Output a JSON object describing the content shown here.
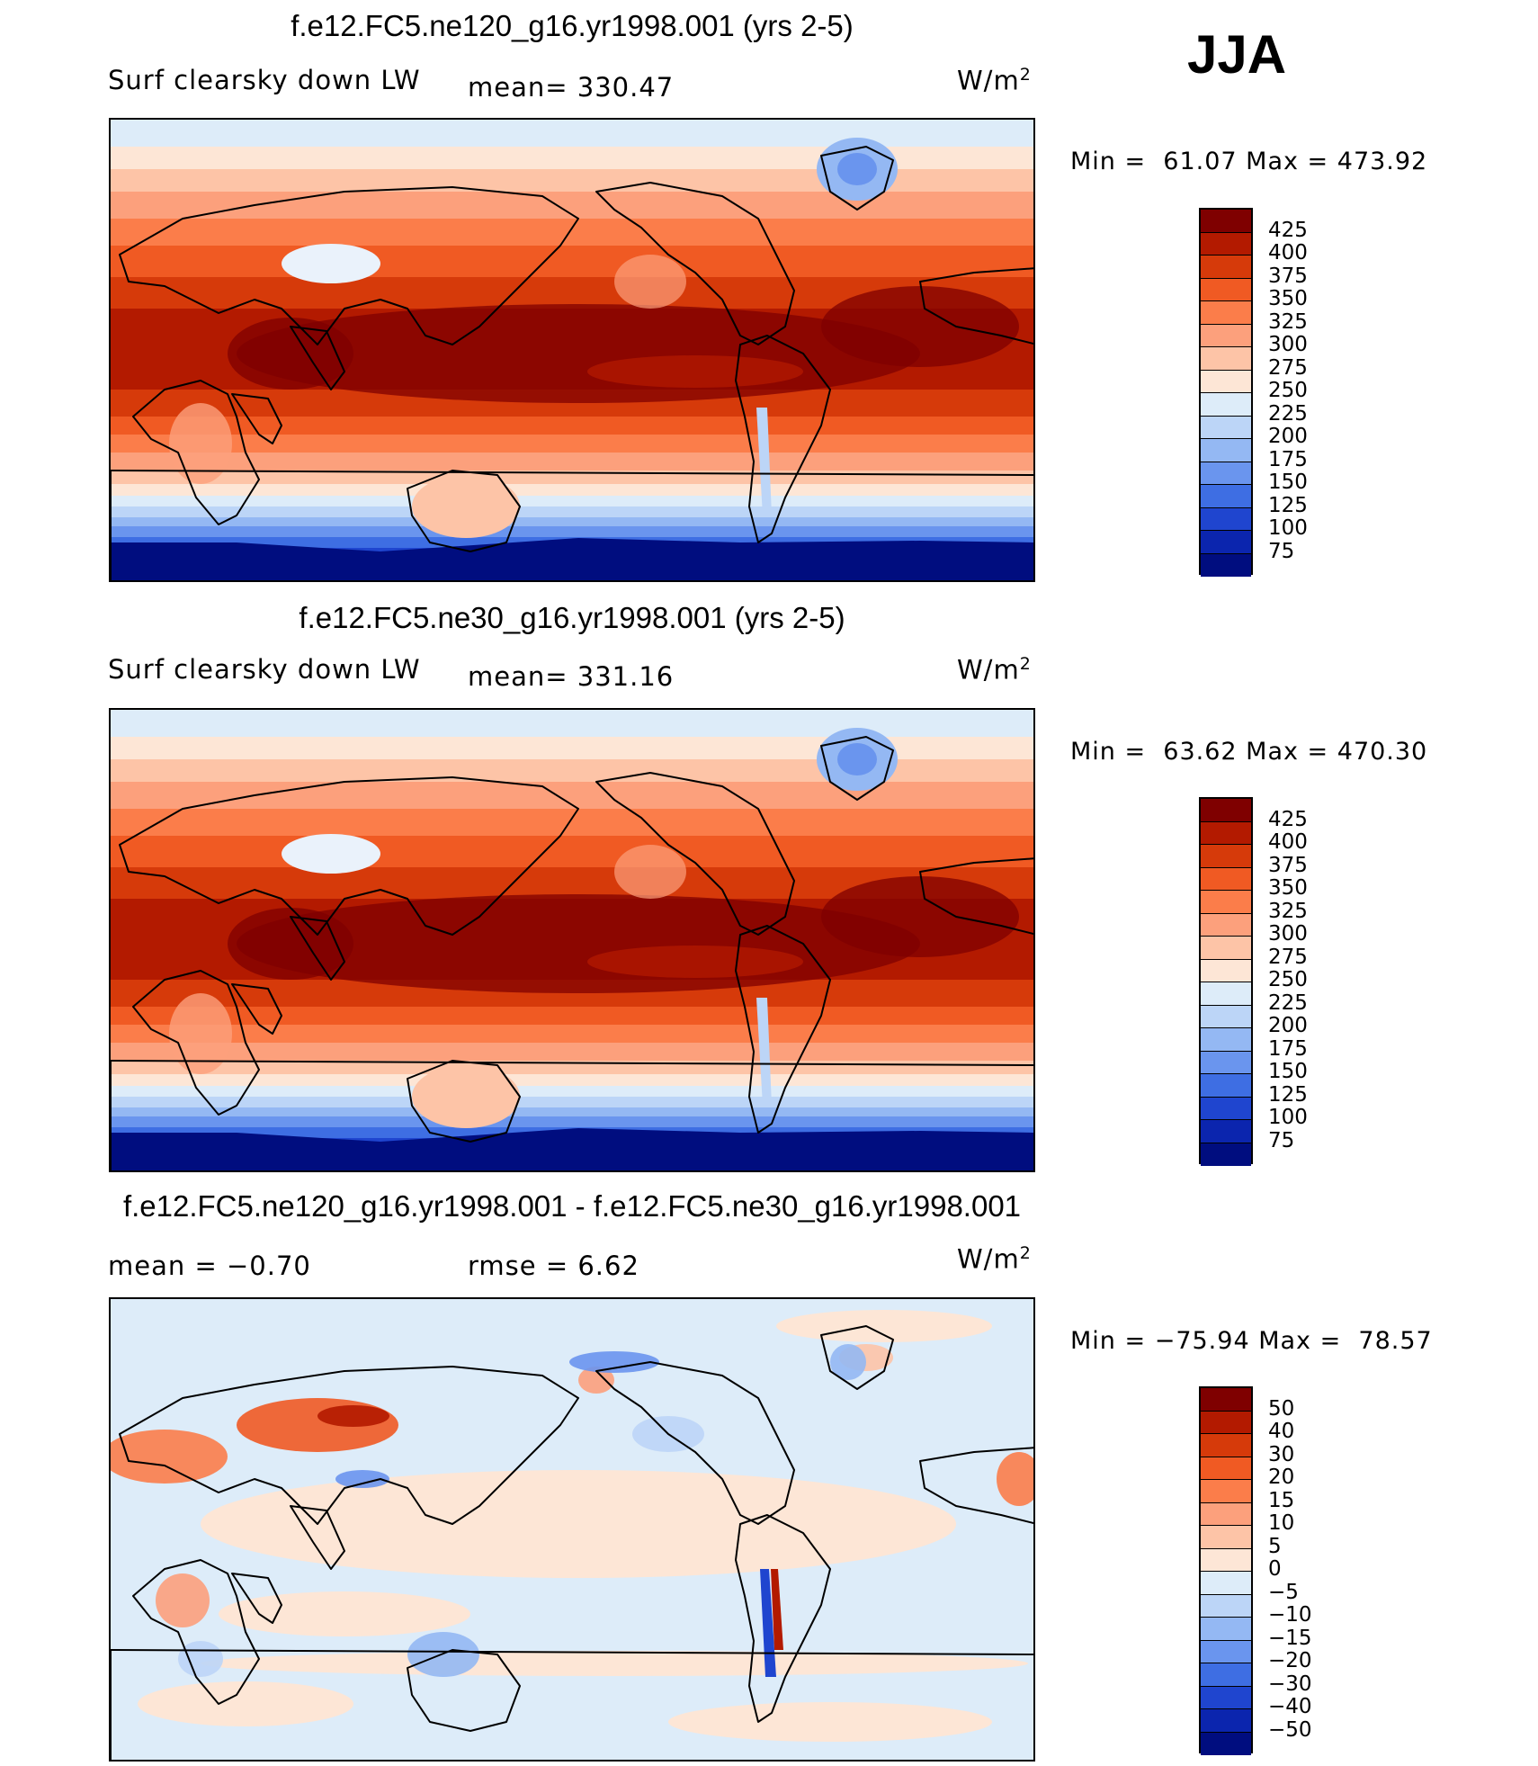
{
  "season": "JJA",
  "panels": [
    {
      "title": "f.e12.FC5.ne120_g16.yr1998.001 (yrs 2-5)",
      "left_label": "Surf clearsky down LW",
      "mid_label": "mean= 330.47",
      "units_base": "W/m",
      "units_sup": "2",
      "minmax": "Min =  61.07 Max = 473.92",
      "colorbar": {
        "levels": [
          "425",
          "400",
          "375",
          "350",
          "325",
          "300",
          "275",
          "250",
          "225",
          "200",
          "175",
          "150",
          "125",
          "100",
          "75"
        ],
        "colors": [
          "#7f0000",
          "#b31a00",
          "#d63a0a",
          "#f05a23",
          "#fb7d4a",
          "#fca07c",
          "#fdc4a7",
          "#fde6d6",
          "#ddecf9",
          "#bcd5f7",
          "#94b8f3",
          "#6a95ee",
          "#3e6ee3",
          "#1f45cf",
          "#0b25ae",
          "#000d7f"
        ]
      }
    },
    {
      "title": "f.e12.FC5.ne30_g16.yr1998.001 (yrs 2-5)",
      "left_label": "Surf clearsky down LW",
      "mid_label": "mean= 331.16",
      "units_base": "W/m",
      "units_sup": "2",
      "minmax": "Min =  63.62 Max = 470.30",
      "colorbar": {
        "levels": [
          "425",
          "400",
          "375",
          "350",
          "325",
          "300",
          "275",
          "250",
          "225",
          "200",
          "175",
          "150",
          "125",
          "100",
          "75"
        ],
        "colors": [
          "#7f0000",
          "#b31a00",
          "#d63a0a",
          "#f05a23",
          "#fb7d4a",
          "#fca07c",
          "#fdc4a7",
          "#fde6d6",
          "#ddecf9",
          "#bcd5f7",
          "#94b8f3",
          "#6a95ee",
          "#3e6ee3",
          "#1f45cf",
          "#0b25ae",
          "#000d7f"
        ]
      }
    },
    {
      "title": "f.e12.FC5.ne120_g16.yr1998.001 - f.e12.FC5.ne30_g16.yr1998.001",
      "left_label": "mean =   −0.70",
      "mid_label": "rmse =    6.62",
      "units_base": "W/m",
      "units_sup": "2",
      "minmax": "Min = −75.94 Max =  78.57",
      "colorbar": {
        "levels": [
          "50",
          "40",
          "30",
          "20",
          "15",
          "10",
          "5",
          "0",
          "−5",
          "−10",
          "−15",
          "−20",
          "−30",
          "−40",
          "−50"
        ],
        "colors": [
          "#7f0000",
          "#b31a00",
          "#d63a0a",
          "#f05a23",
          "#fb7d4a",
          "#fca07c",
          "#fdc4a7",
          "#fde6d6",
          "#ddecf9",
          "#bcd5f7",
          "#94b8f3",
          "#6a95ee",
          "#3e6ee3",
          "#1f45cf",
          "#0b25ae",
          "#000d7f"
        ]
      }
    }
  ]
}
